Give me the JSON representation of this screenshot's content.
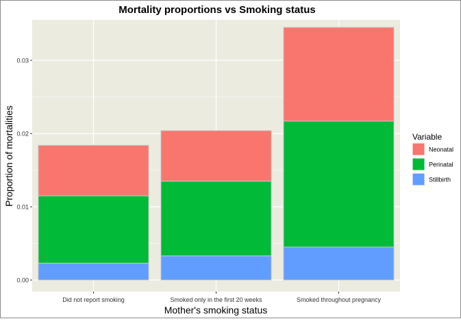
{
  "chart_data": {
    "type": "bar",
    "stacked": true,
    "title": "Mortality proportions vs Smoking status",
    "xlabel": "Mother's smoking status",
    "ylabel": "Proportion of mortalities",
    "categories": [
      "Did not report smoking",
      "Smoked only in the first 20 weeks",
      "Smoked throughout pregnancy"
    ],
    "series": [
      {
        "name": "Stillbirth",
        "color": "#619CFF",
        "values": [
          0.0023,
          0.0033,
          0.0045
        ]
      },
      {
        "name": "Perinatal",
        "color": "#00BA38",
        "values": [
          0.0092,
          0.0102,
          0.0172
        ]
      },
      {
        "name": "Neonatal",
        "color": "#F8766D",
        "values": [
          0.0069,
          0.0069,
          0.0128
        ]
      }
    ],
    "ylim": [
      0,
      0.035
    ],
    "yticks": [
      0,
      0.01,
      0.02,
      0.03
    ],
    "ytick_labels": [
      "0.00",
      "0.01",
      "0.02",
      "0.03"
    ],
    "legend": {
      "title": "Variable",
      "position": "right",
      "order": [
        "Neonatal",
        "Perinatal",
        "Stillbirth"
      ]
    },
    "grid": true,
    "panel_background": "#EBEBE0"
  }
}
